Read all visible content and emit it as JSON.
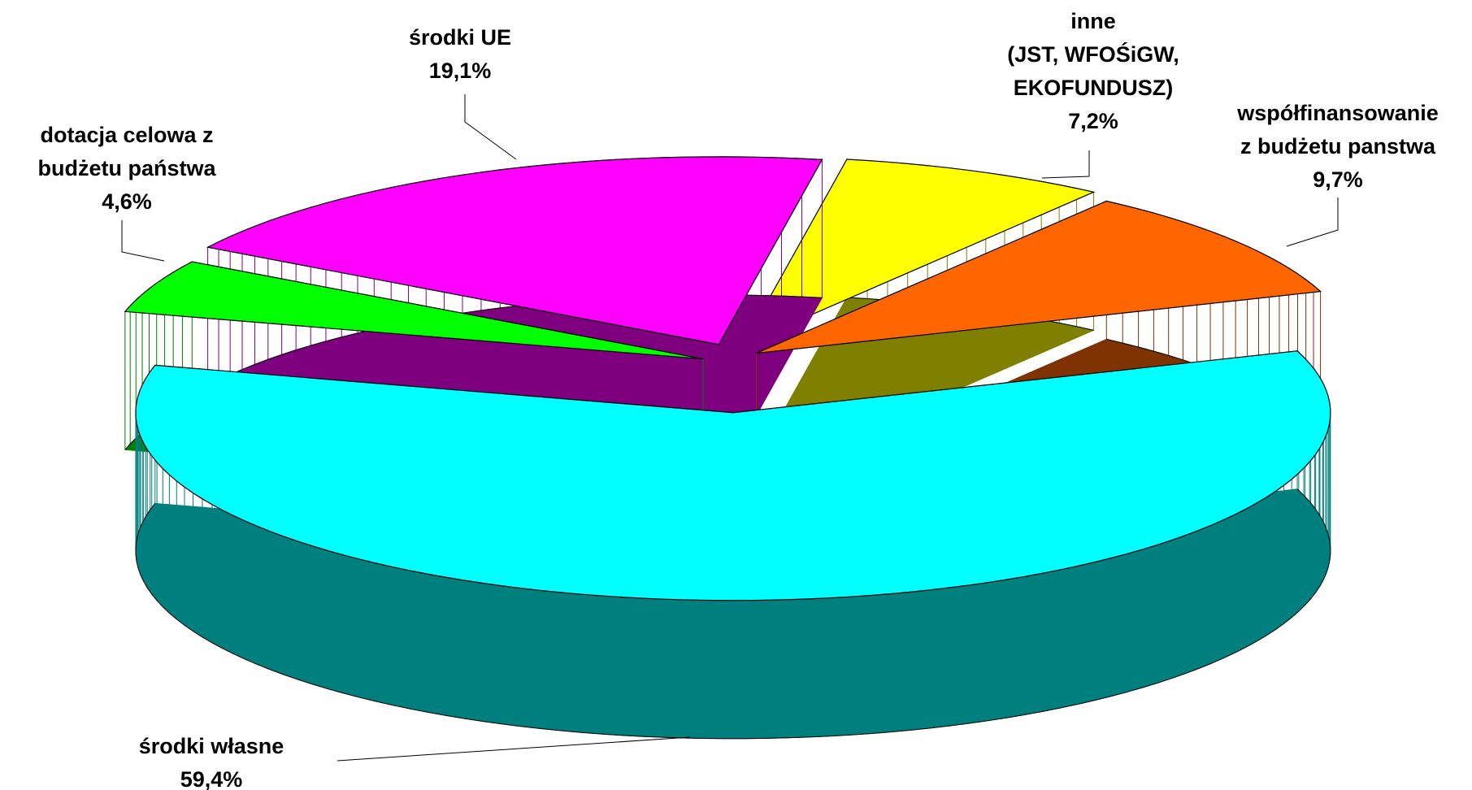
{
  "chart_data": {
    "type": "pie3d",
    "categories": [
      "środki UE",
      "inne\n(JST, WFOŚiGW,\nEKOFUNDUSZ)",
      "współfinansowanie\nz budżetu panstwa",
      "środki własne",
      "dotacja celowa z\nbudżetu państwa"
    ],
    "values": [
      19.1,
      7.2,
      9.7,
      59.4,
      4.6
    ],
    "value_labels": [
      "19,1%",
      "7,2%",
      "9,7%",
      "59,4%",
      "4,6%"
    ],
    "colors": [
      "#ff00ff",
      "#ffff00",
      "#ff6600",
      "#00ffff",
      "#00ff00"
    ]
  }
}
